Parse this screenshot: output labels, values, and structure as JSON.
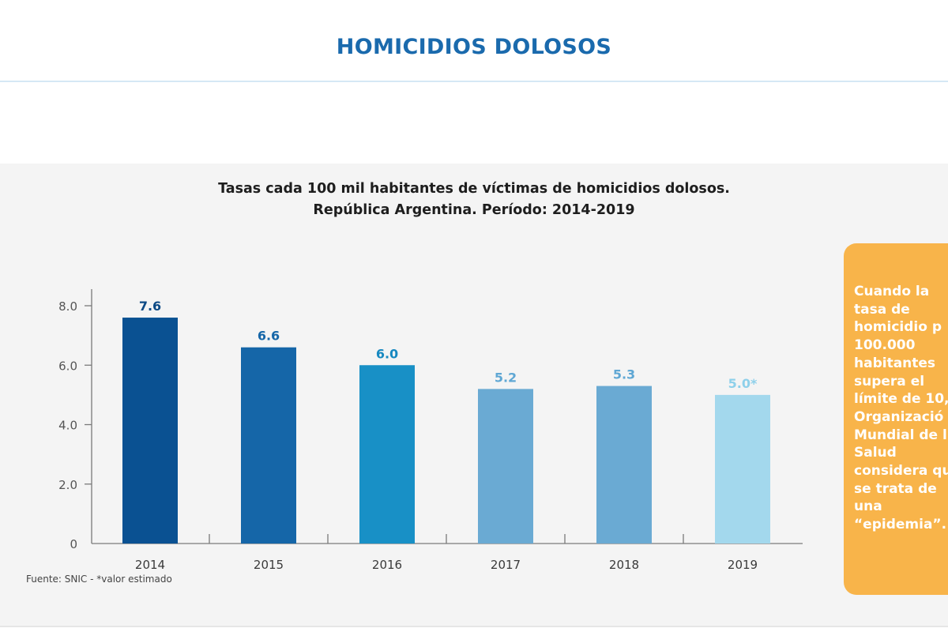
{
  "header": {
    "title": "HOMICIDIOS DOLOSOS"
  },
  "chart_data": {
    "type": "bar",
    "title_line1": "Tasas cada 100 mil habitantes de víctimas de homicidios dolosos.",
    "title_line2": "República Argentina. Período: 2014-2019",
    "categories": [
      "2014",
      "2015",
      "2016",
      "2017",
      "2018",
      "2019"
    ],
    "values": [
      7.6,
      6.6,
      6.0,
      5.2,
      5.3,
      5.0
    ],
    "value_labels": [
      "7.6",
      "6.6",
      "6.0",
      "5.2",
      "5.3",
      "5.0*"
    ],
    "bar_colors": [
      "#0a5192",
      "#1566a8",
      "#1890c6",
      "#6aaad3",
      "#6aaad3",
      "#a3d8ed"
    ],
    "label_colors": [
      "#0d4a85",
      "#1566a8",
      "#1688c0",
      "#5fa7d4",
      "#5fa7d4",
      "#8ed0ea"
    ],
    "yticks": [
      {
        "value": 0,
        "label": "0"
      },
      {
        "value": 2,
        "label": "2.0"
      },
      {
        "value": 4,
        "label": "4.0"
      },
      {
        "value": 6,
        "label": "6.0"
      },
      {
        "value": 8,
        "label": "8.0"
      }
    ],
    "ylim": [
      0,
      8.5
    ],
    "grid": false,
    "source": "Fuente: SNIC - *valor estimado"
  },
  "callout": {
    "text": "Cuando la\ntasa de\nhomicidio p\n100.000\nhabitantes\nsupera el\nlímite de 10,\nOrganizació\nMundial de l\nSalud\nconsidera qu\nse trata de\nuna\n“epidemia”."
  }
}
